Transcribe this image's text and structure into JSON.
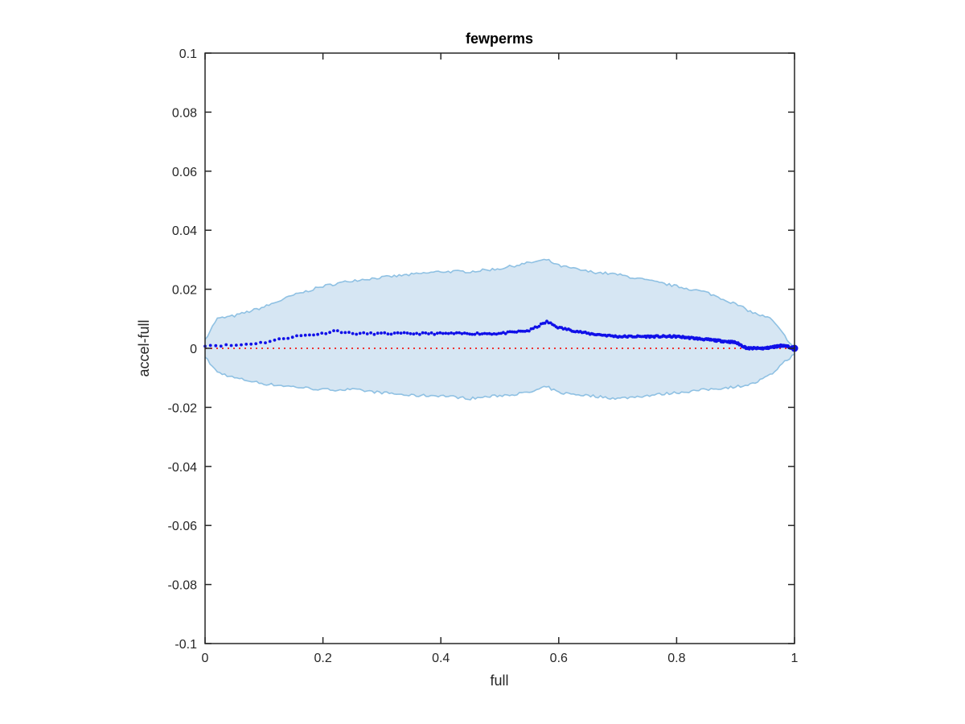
{
  "chart_data": {
    "type": "line",
    "title": "fewperms",
    "xlabel": "full",
    "ylabel": "accel-full",
    "xlim": [
      0,
      1
    ],
    "ylim": [
      -0.1,
      0.1
    ],
    "xticks": [
      "0",
      "0.2",
      "0.4",
      "0.6",
      "0.8",
      "1"
    ],
    "yticks": [
      "0.1",
      "0.08",
      "0.06",
      "0.04",
      "0.02",
      "0",
      "-0.02",
      "-0.04",
      "-0.06",
      "-0.08",
      "-0.1"
    ],
    "grid": false,
    "legend": "none",
    "band": {
      "x": [
        0,
        0.02,
        0.05,
        0.1,
        0.15,
        0.2,
        0.25,
        0.3,
        0.35,
        0.4,
        0.45,
        0.5,
        0.55,
        0.58,
        0.6,
        0.65,
        0.7,
        0.75,
        0.8,
        0.85,
        0.9,
        0.93,
        0.96,
        0.98,
        1.0
      ],
      "upper": [
        0.003,
        0.01,
        0.011,
        0.014,
        0.018,
        0.021,
        0.023,
        0.024,
        0.025,
        0.026,
        0.026,
        0.027,
        0.029,
        0.03,
        0.028,
        0.026,
        0.025,
        0.023,
        0.021,
        0.019,
        0.015,
        0.012,
        0.01,
        0.005,
        0.0
      ],
      "lower": [
        -0.003,
        -0.008,
        -0.01,
        -0.012,
        -0.013,
        -0.014,
        -0.014,
        -0.015,
        -0.016,
        -0.016,
        -0.017,
        -0.016,
        -0.015,
        -0.013,
        -0.015,
        -0.016,
        -0.017,
        -0.016,
        -0.015,
        -0.014,
        -0.013,
        -0.012,
        -0.009,
        -0.005,
        -0.002
      ]
    },
    "series": [
      {
        "x": [
          0,
          0.05,
          0.1,
          0.15,
          0.2,
          0.22,
          0.25,
          0.3,
          0.35,
          0.4,
          0.45,
          0.5,
          0.55,
          0.58,
          0.6,
          0.65,
          0.7,
          0.75,
          0.8,
          0.85,
          0.9,
          0.92,
          0.95,
          0.98,
          1.0
        ],
        "y": [
          0.001,
          0.001,
          0.002,
          0.004,
          0.005,
          0.006,
          0.005,
          0.005,
          0.005,
          0.005,
          0.005,
          0.005,
          0.006,
          0.009,
          0.007,
          0.005,
          0.004,
          0.004,
          0.004,
          0.003,
          0.002,
          0.0,
          0.0,
          0.001,
          0.0
        ]
      }
    ],
    "reference_line": {
      "y": 0
    },
    "colors": {
      "band_fill": "#d6e6f3",
      "band_edge": "#8fc1e3",
      "series": "#1010e8",
      "reference": "#ee3333",
      "axes": "#262626"
    }
  }
}
